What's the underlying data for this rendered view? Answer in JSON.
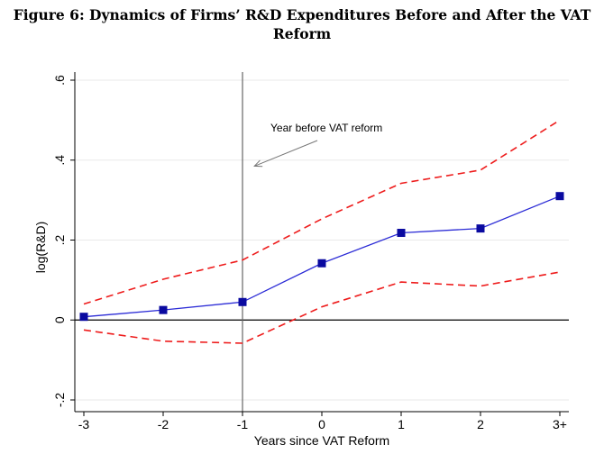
{
  "figure": {
    "title_line1": "Figure 6: Dynamics of Firms’ R&D Expenditures Before and After the VAT",
    "title_line2": "Reform"
  },
  "chart_data": {
    "type": "line",
    "title": "Figure 6: Dynamics of Firms’ R&D Expenditures Before and After the VAT Reform",
    "xlabel": "Years since VAT Reform",
    "ylabel": "log(R&D)",
    "categories": [
      "-3",
      "-2",
      "-1",
      "0",
      "1",
      "2",
      "3+"
    ],
    "x": [
      -3,
      -2,
      -1,
      0,
      1,
      2,
      3
    ],
    "xlim": [
      -3,
      3
    ],
    "ylim": [
      -0.2,
      0.6
    ],
    "yticks": [
      -0.2,
      0,
      0.2,
      0.4,
      0.6
    ],
    "ytick_labels": [
      "-.2",
      "0",
      ".2",
      ".4",
      ".6"
    ],
    "series": [
      {
        "name": "Estimate",
        "values": [
          0.008,
          0.025,
          0.045,
          0.142,
          0.218,
          0.229,
          0.31
        ],
        "color": "#2b2bd6",
        "style": "solid",
        "marker": "square"
      },
      {
        "name": "Upper 95% CI",
        "values": [
          0.04,
          0.102,
          0.15,
          0.253,
          0.342,
          0.375,
          0.5
        ],
        "color": "#ee1c1c",
        "style": "dashed"
      },
      {
        "name": "Lower 95% CI",
        "values": [
          -0.025,
          -0.053,
          -0.058,
          0.033,
          0.095,
          0.085,
          0.12
        ],
        "color": "#ee1c1c",
        "style": "dashed"
      }
    ],
    "reference_lines": {
      "vertical_x": -1,
      "horizontal_y": 0
    },
    "annotation": {
      "text": "Year before VAT reform",
      "arrow_to": {
        "x": -0.85,
        "y": 0.385
      }
    },
    "grid": true
  }
}
